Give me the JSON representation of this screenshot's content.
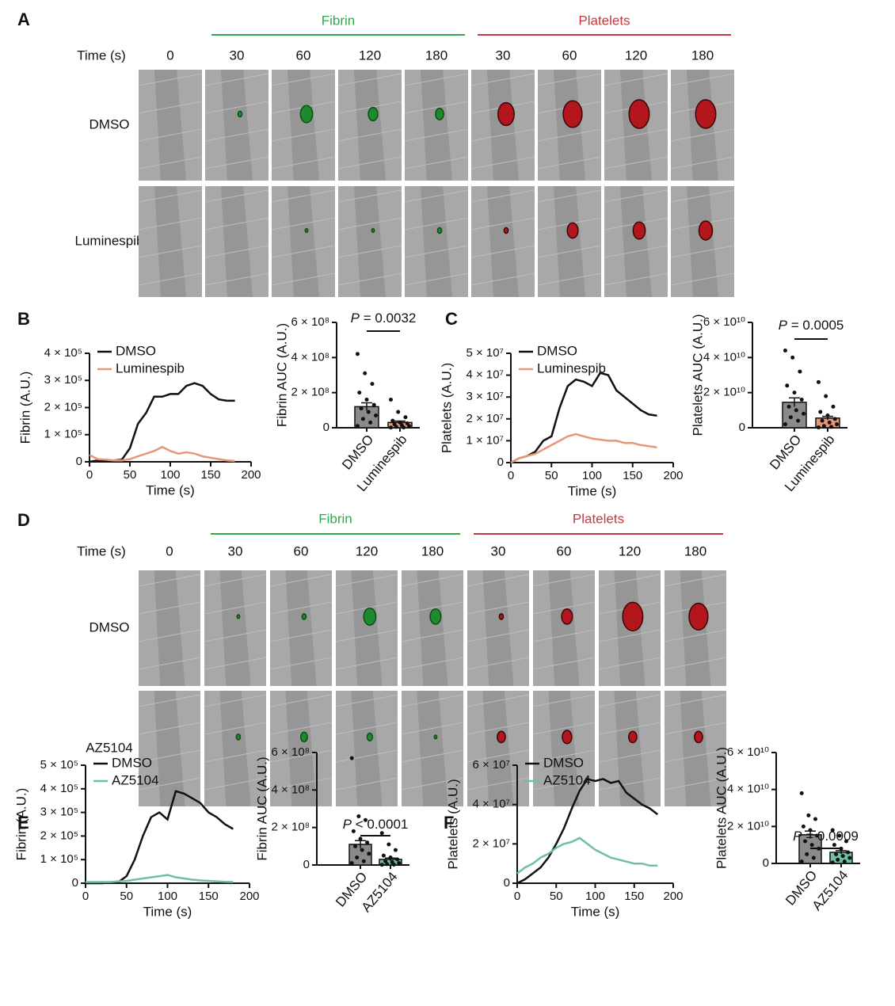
{
  "panel_labels": [
    "A",
    "B",
    "C",
    "D",
    "E",
    "F"
  ],
  "image_panels": [
    {
      "time_label": "Time (s)",
      "times": [
        0,
        30,
        60,
        120,
        180,
        30,
        60,
        120,
        180
      ],
      "groups": [
        {
          "name": "Fibrin",
          "color": "#2ea84a"
        },
        {
          "name": "Platelets",
          "color": "#c23a3c"
        }
      ],
      "rows": [
        "DMSO",
        "Luminespib"
      ]
    },
    {
      "time_label": "Time (s)",
      "times": [
        0,
        30,
        60,
        120,
        180,
        30,
        60,
        120,
        180
      ],
      "groups": [
        {
          "name": "Fibrin",
          "color": "#2ea84a"
        },
        {
          "name": "Platelets",
          "color": "#c23a3c"
        }
      ],
      "rows": [
        "DMSO",
        "AZ5104"
      ]
    }
  ],
  "chart_data": [
    {
      "type": "line",
      "ylabel": "Fibrin (A.U.)",
      "xlabel": "Time (s)",
      "x": [
        0,
        10,
        20,
        30,
        40,
        50,
        60,
        70,
        80,
        90,
        100,
        110,
        120,
        130,
        140,
        150,
        160,
        170,
        180
      ],
      "xlim": [
        0,
        200
      ],
      "xticks": [
        0,
        50,
        100,
        150,
        200
      ],
      "ylim": [
        0,
        400000
      ],
      "yticks": [
        0,
        {
          "value": 100000,
          "label": "1 × 10⁵"
        },
        {
          "value": 200000,
          "label": "2 × 10⁵"
        },
        {
          "value": 300000,
          "label": "3 × 10⁵"
        },
        {
          "value": 400000,
          "label": "4 × 10⁵"
        }
      ],
      "series": [
        {
          "name": "DMSO",
          "color": "#111111",
          "values": [
            0,
            5000,
            5000,
            5000,
            8000,
            50000,
            140000,
            180000,
            240000,
            240000,
            250000,
            250000,
            280000,
            290000,
            280000,
            250000,
            230000,
            225000,
            225000
          ]
        },
        {
          "name": "Luminespib",
          "color": "#e8967a",
          "values": [
            25000,
            10000,
            8000,
            5000,
            5000,
            10000,
            20000,
            30000,
            40000,
            55000,
            40000,
            30000,
            35000,
            30000,
            20000,
            15000,
            10000,
            5000,
            3000
          ]
        }
      ]
    },
    {
      "type": "bar",
      "ylabel": "Fibrin AUC (A.U.)",
      "categories": [
        "DMSO",
        "Luminespib"
      ],
      "colors": [
        "#8a8a8a",
        "#e8967a"
      ],
      "values": [
        120000000,
        30000000
      ],
      "errors": [
        22000000,
        8000000
      ],
      "points": [
        [
          420000000,
          310000000,
          250000000,
          200000000,
          160000000,
          130000000,
          110000000,
          90000000,
          70000000,
          50000000,
          30000000,
          10000000
        ],
        [
          160000000,
          90000000,
          60000000,
          40000000,
          30000000,
          25000000,
          20000000,
          15000000,
          10000000,
          5000000,
          2000000,
          1000000
        ]
      ],
      "ylim": [
        0,
        600000000
      ],
      "yticks": [
        0,
        {
          "value": 200000000,
          "label": "2 × 10⁸"
        },
        {
          "value": 400000000,
          "label": "4 × 10⁸"
        },
        {
          "value": 600000000,
          "label": "6 × 10⁸"
        }
      ],
      "annotation": {
        "symbol": "P",
        "text": " = 0.0032"
      }
    },
    {
      "type": "line",
      "ylabel": "Platelets (A.U.)",
      "xlabel": "Time (s)",
      "x": [
        0,
        10,
        20,
        30,
        40,
        50,
        60,
        70,
        80,
        90,
        100,
        110,
        120,
        130,
        140,
        150,
        160,
        170,
        180
      ],
      "xlim": [
        0,
        200
      ],
      "xticks": [
        0,
        50,
        100,
        150,
        200
      ],
      "ylim": [
        0,
        50000000
      ],
      "yticks": [
        0,
        {
          "value": 10000000,
          "label": "1 × 10⁷"
        },
        {
          "value": 20000000,
          "label": "2 × 10⁷"
        },
        {
          "value": 30000000,
          "label": "3 × 10⁷"
        },
        {
          "value": 40000000,
          "label": "4 × 10⁷"
        },
        {
          "value": 50000000,
          "label": "5 × 10⁷"
        }
      ],
      "series": [
        {
          "name": "DMSO",
          "color": "#111111",
          "values": [
            0,
            2000000,
            3000000,
            5000000,
            10000000,
            12000000,
            25000000,
            35000000,
            38000000,
            37000000,
            35000000,
            41000000,
            40000000,
            33000000,
            30000000,
            27000000,
            24000000,
            22000000,
            21500000
          ]
        },
        {
          "name": "Luminespib",
          "color": "#e8967a",
          "values": [
            0,
            2000000,
            3000000,
            4000000,
            6000000,
            8000000,
            10000000,
            12000000,
            13000000,
            12000000,
            11000000,
            10500000,
            10000000,
            10000000,
            9000000,
            9000000,
            8000000,
            7500000,
            7000000
          ]
        }
      ]
    },
    {
      "type": "bar",
      "ylabel": "Platelets AUC (A.U.)",
      "categories": [
        "DMSO",
        "Luminespib"
      ],
      "colors": [
        "#8a8a8a",
        "#e8967a"
      ],
      "values": [
        14500000000,
        5500000000
      ],
      "errors": [
        2500000000,
        1000000000
      ],
      "points": [
        [
          44000000000,
          40000000000,
          32000000000,
          24000000000,
          20000000000,
          16000000000,
          12000000000,
          10000000000,
          8000000000,
          6000000000,
          4000000000,
          2000000000
        ],
        [
          26000000000,
          18000000000,
          12000000000,
          9000000000,
          7000000000,
          5000000000,
          4000000000,
          3000000000,
          2000000000,
          1000000000,
          500000000,
          200000000
        ]
      ],
      "ylim": [
        0,
        60000000000
      ],
      "yticks": [
        0,
        {
          "value": 20000000000,
          "label": "2 × 10¹⁰"
        },
        {
          "value": 40000000000,
          "label": "4 × 10¹⁰"
        },
        {
          "value": 60000000000,
          "label": "6 × 10¹⁰"
        }
      ],
      "annotation": {
        "symbol": "P",
        "text": " = 0.0005"
      }
    },
    {
      "type": "line",
      "ylabel": "Fibrin (A.U.)",
      "xlabel": "Time (s)",
      "x": [
        0,
        10,
        20,
        30,
        40,
        50,
        60,
        70,
        80,
        90,
        100,
        110,
        120,
        130,
        140,
        150,
        160,
        170,
        180
      ],
      "xlim": [
        0,
        200
      ],
      "xticks": [
        0,
        50,
        100,
        150,
        200
      ],
      "ylim": [
        0,
        500000
      ],
      "yticks": [
        0,
        {
          "value": 100000,
          "label": "1 × 10⁵"
        },
        {
          "value": 200000,
          "label": "2 × 10⁵"
        },
        {
          "value": 300000,
          "label": "3 × 10⁵"
        },
        {
          "value": 400000,
          "label": "4 × 10⁵"
        },
        {
          "value": 500000,
          "label": "5 × 10⁵"
        }
      ],
      "series": [
        {
          "name": "DMSO",
          "color": "#111111",
          "values": [
            0,
            0,
            0,
            2000,
            5000,
            30000,
            100000,
            200000,
            280000,
            300000,
            270000,
            390000,
            380000,
            360000,
            340000,
            300000,
            280000,
            250000,
            230000
          ]
        },
        {
          "name": "AZ5104",
          "color": "#6fbfa0",
          "values": [
            5000,
            5000,
            5000,
            5000,
            8000,
            10000,
            15000,
            20000,
            25000,
            30000,
            35000,
            25000,
            20000,
            15000,
            12000,
            10000,
            8000,
            6000,
            5000
          ]
        }
      ]
    },
    {
      "type": "bar",
      "ylabel": "Fibrin AUC (A.U.)",
      "categories": [
        "DMSO",
        "AZ5104"
      ],
      "colors": [
        "#8a8a8a",
        "#6fbfa0"
      ],
      "values": [
        110000000,
        30000000
      ],
      "errors": [
        20000000,
        7000000
      ],
      "points": [
        [
          570000000,
          260000000,
          240000000,
          180000000,
          140000000,
          120000000,
          100000000,
          80000000,
          60000000,
          40000000,
          20000000,
          10000000
        ],
        [
          170000000,
          110000000,
          80000000,
          50000000,
          40000000,
          30000000,
          20000000,
          15000000,
          10000000,
          5000000,
          2000000,
          1000000
        ]
      ],
      "ylim": [
        0,
        600000000
      ],
      "yticks": [
        0,
        {
          "value": 200000000,
          "label": "2 × 10⁸"
        },
        {
          "value": 400000000,
          "label": "4 × 10⁸"
        },
        {
          "value": 600000000,
          "label": "6 × 10⁸"
        }
      ],
      "annotation": {
        "symbol": "P",
        "text": " < 0.0001"
      }
    },
    {
      "type": "line",
      "ylabel": "Platelets (A.U.)",
      "xlabel": "Time (s)",
      "x": [
        0,
        10,
        20,
        30,
        40,
        50,
        60,
        70,
        80,
        90,
        100,
        110,
        120,
        130,
        140,
        150,
        160,
        170,
        180
      ],
      "xlim": [
        0,
        200
      ],
      "xticks": [
        0,
        50,
        100,
        150,
        200
      ],
      "ylim": [
        0,
        60000000
      ],
      "yticks": [
        0,
        {
          "value": 20000000,
          "label": "2 × 10⁷"
        },
        {
          "value": 40000000,
          "label": "4 × 10⁷"
        },
        {
          "value": 60000000,
          "label": "6 × 10⁷"
        }
      ],
      "series": [
        {
          "name": "DMSO",
          "color": "#111111",
          "values": [
            0,
            2000000,
            5000000,
            8000000,
            13000000,
            20000000,
            28000000,
            38000000,
            47000000,
            53000000,
            52000000,
            53000000,
            51000000,
            52000000,
            46000000,
            43000000,
            40000000,
            38000000,
            35000000
          ]
        },
        {
          "name": "AZ5104",
          "color": "#6fbfa0",
          "values": [
            5000000,
            8000000,
            10000000,
            13000000,
            15000000,
            18000000,
            20000000,
            21000000,
            23000000,
            20000000,
            17000000,
            15000000,
            13000000,
            12000000,
            11000000,
            10000000,
            10000000,
            9000000,
            9000000
          ]
        }
      ]
    },
    {
      "type": "bar",
      "ylabel": "Platelets AUC (A.U.)",
      "categories": [
        "DMSO",
        "AZ5104"
      ],
      "colors": [
        "#8a8a8a",
        "#6fbfa0"
      ],
      "values": [
        15500000000,
        6000000000
      ],
      "errors": [
        2000000000,
        900000000
      ],
      "points": [
        [
          38000000000,
          26000000000,
          24000000000,
          20000000000,
          18000000000,
          15000000000,
          12000000000,
          10000000000,
          8000000000,
          5000000000,
          3000000000,
          1000000000
        ],
        [
          18000000000,
          15000000000,
          12000000000,
          10000000000,
          8000000000,
          6000000000,
          5000000000,
          4000000000,
          3000000000,
          2000000000,
          1000000000,
          500000000
        ]
      ],
      "ylim": [
        0,
        60000000000
      ],
      "yticks": [
        0,
        {
          "value": 20000000000,
          "label": "2 × 10¹⁰"
        },
        {
          "value": 40000000000,
          "label": "4 × 10¹⁰"
        },
        {
          "value": 60000000000,
          "label": "6 × 10¹⁰"
        }
      ],
      "annotation": {
        "symbol": "P",
        "text": " = 0.0009"
      }
    }
  ]
}
